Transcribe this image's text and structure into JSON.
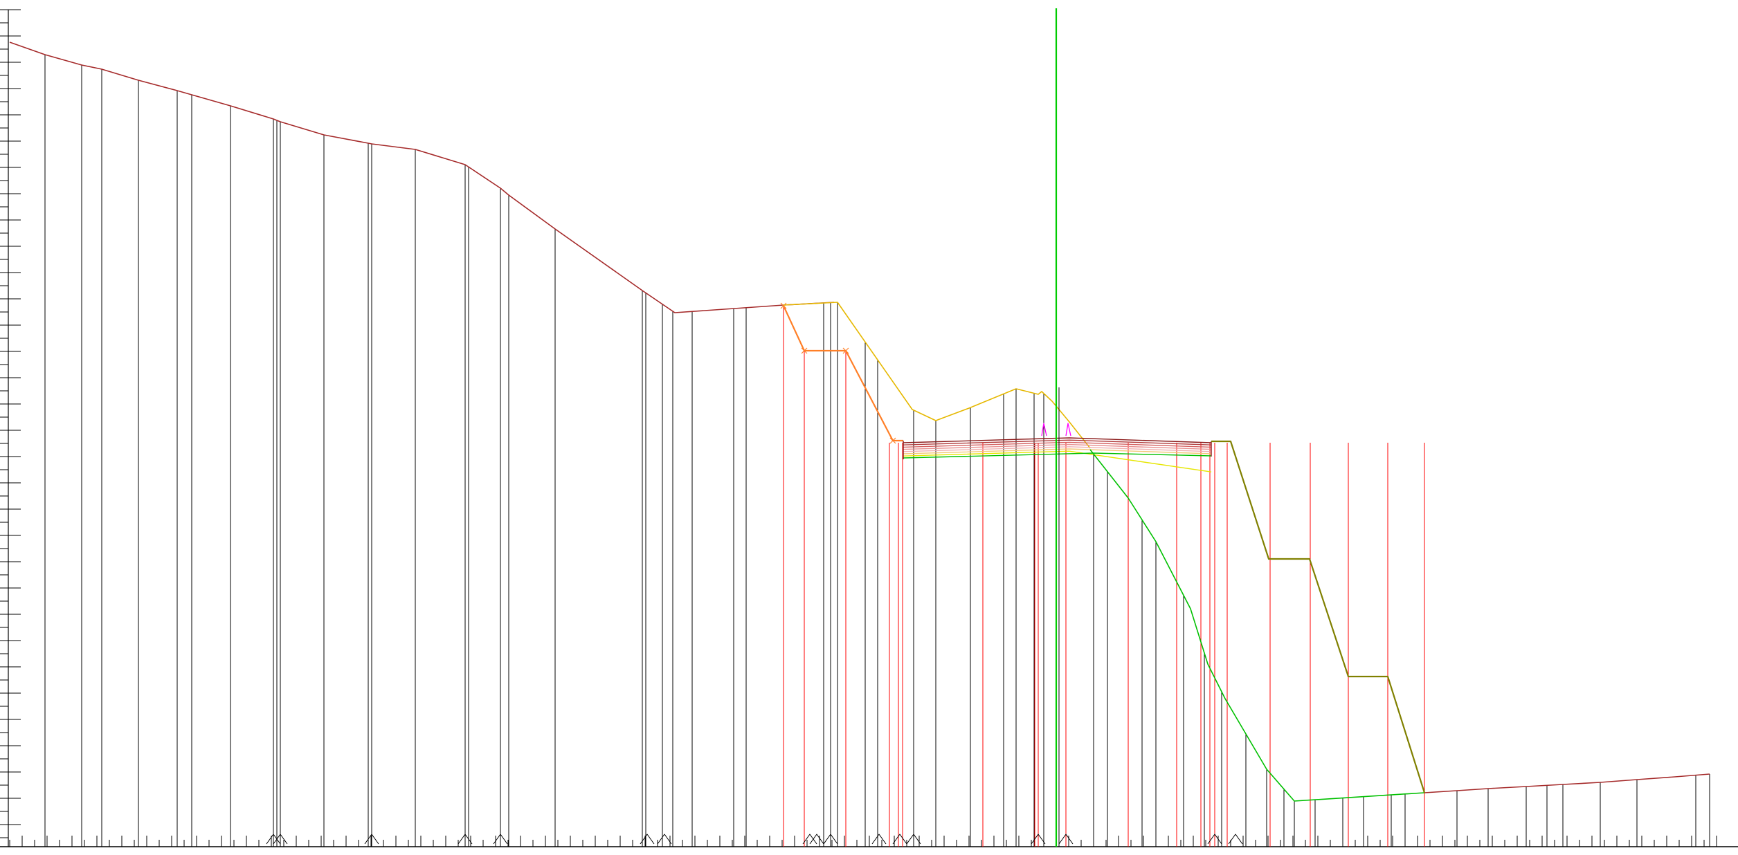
{
  "drawing": {
    "kind": "road cross-section profile",
    "colors": {
      "background": "#ffffff",
      "ground_line": "#a52a2a",
      "station_lines": "#000000",
      "design_station_lines": "#ff0000",
      "cut_slope": "#ff7f27",
      "upper_profile": "#e6b800",
      "lower_profile": "#00c000",
      "centerline": "#00cc00",
      "fill_slope": "#808000",
      "pavement_layers": [
        "#8b1a1a",
        "#b03a3a",
        "#d46060",
        "#e89090",
        "#f0b0b0",
        "#f3c97a",
        "#e6e600"
      ],
      "markers": "#ff00ff",
      "axis": "#000000"
    }
  }
}
